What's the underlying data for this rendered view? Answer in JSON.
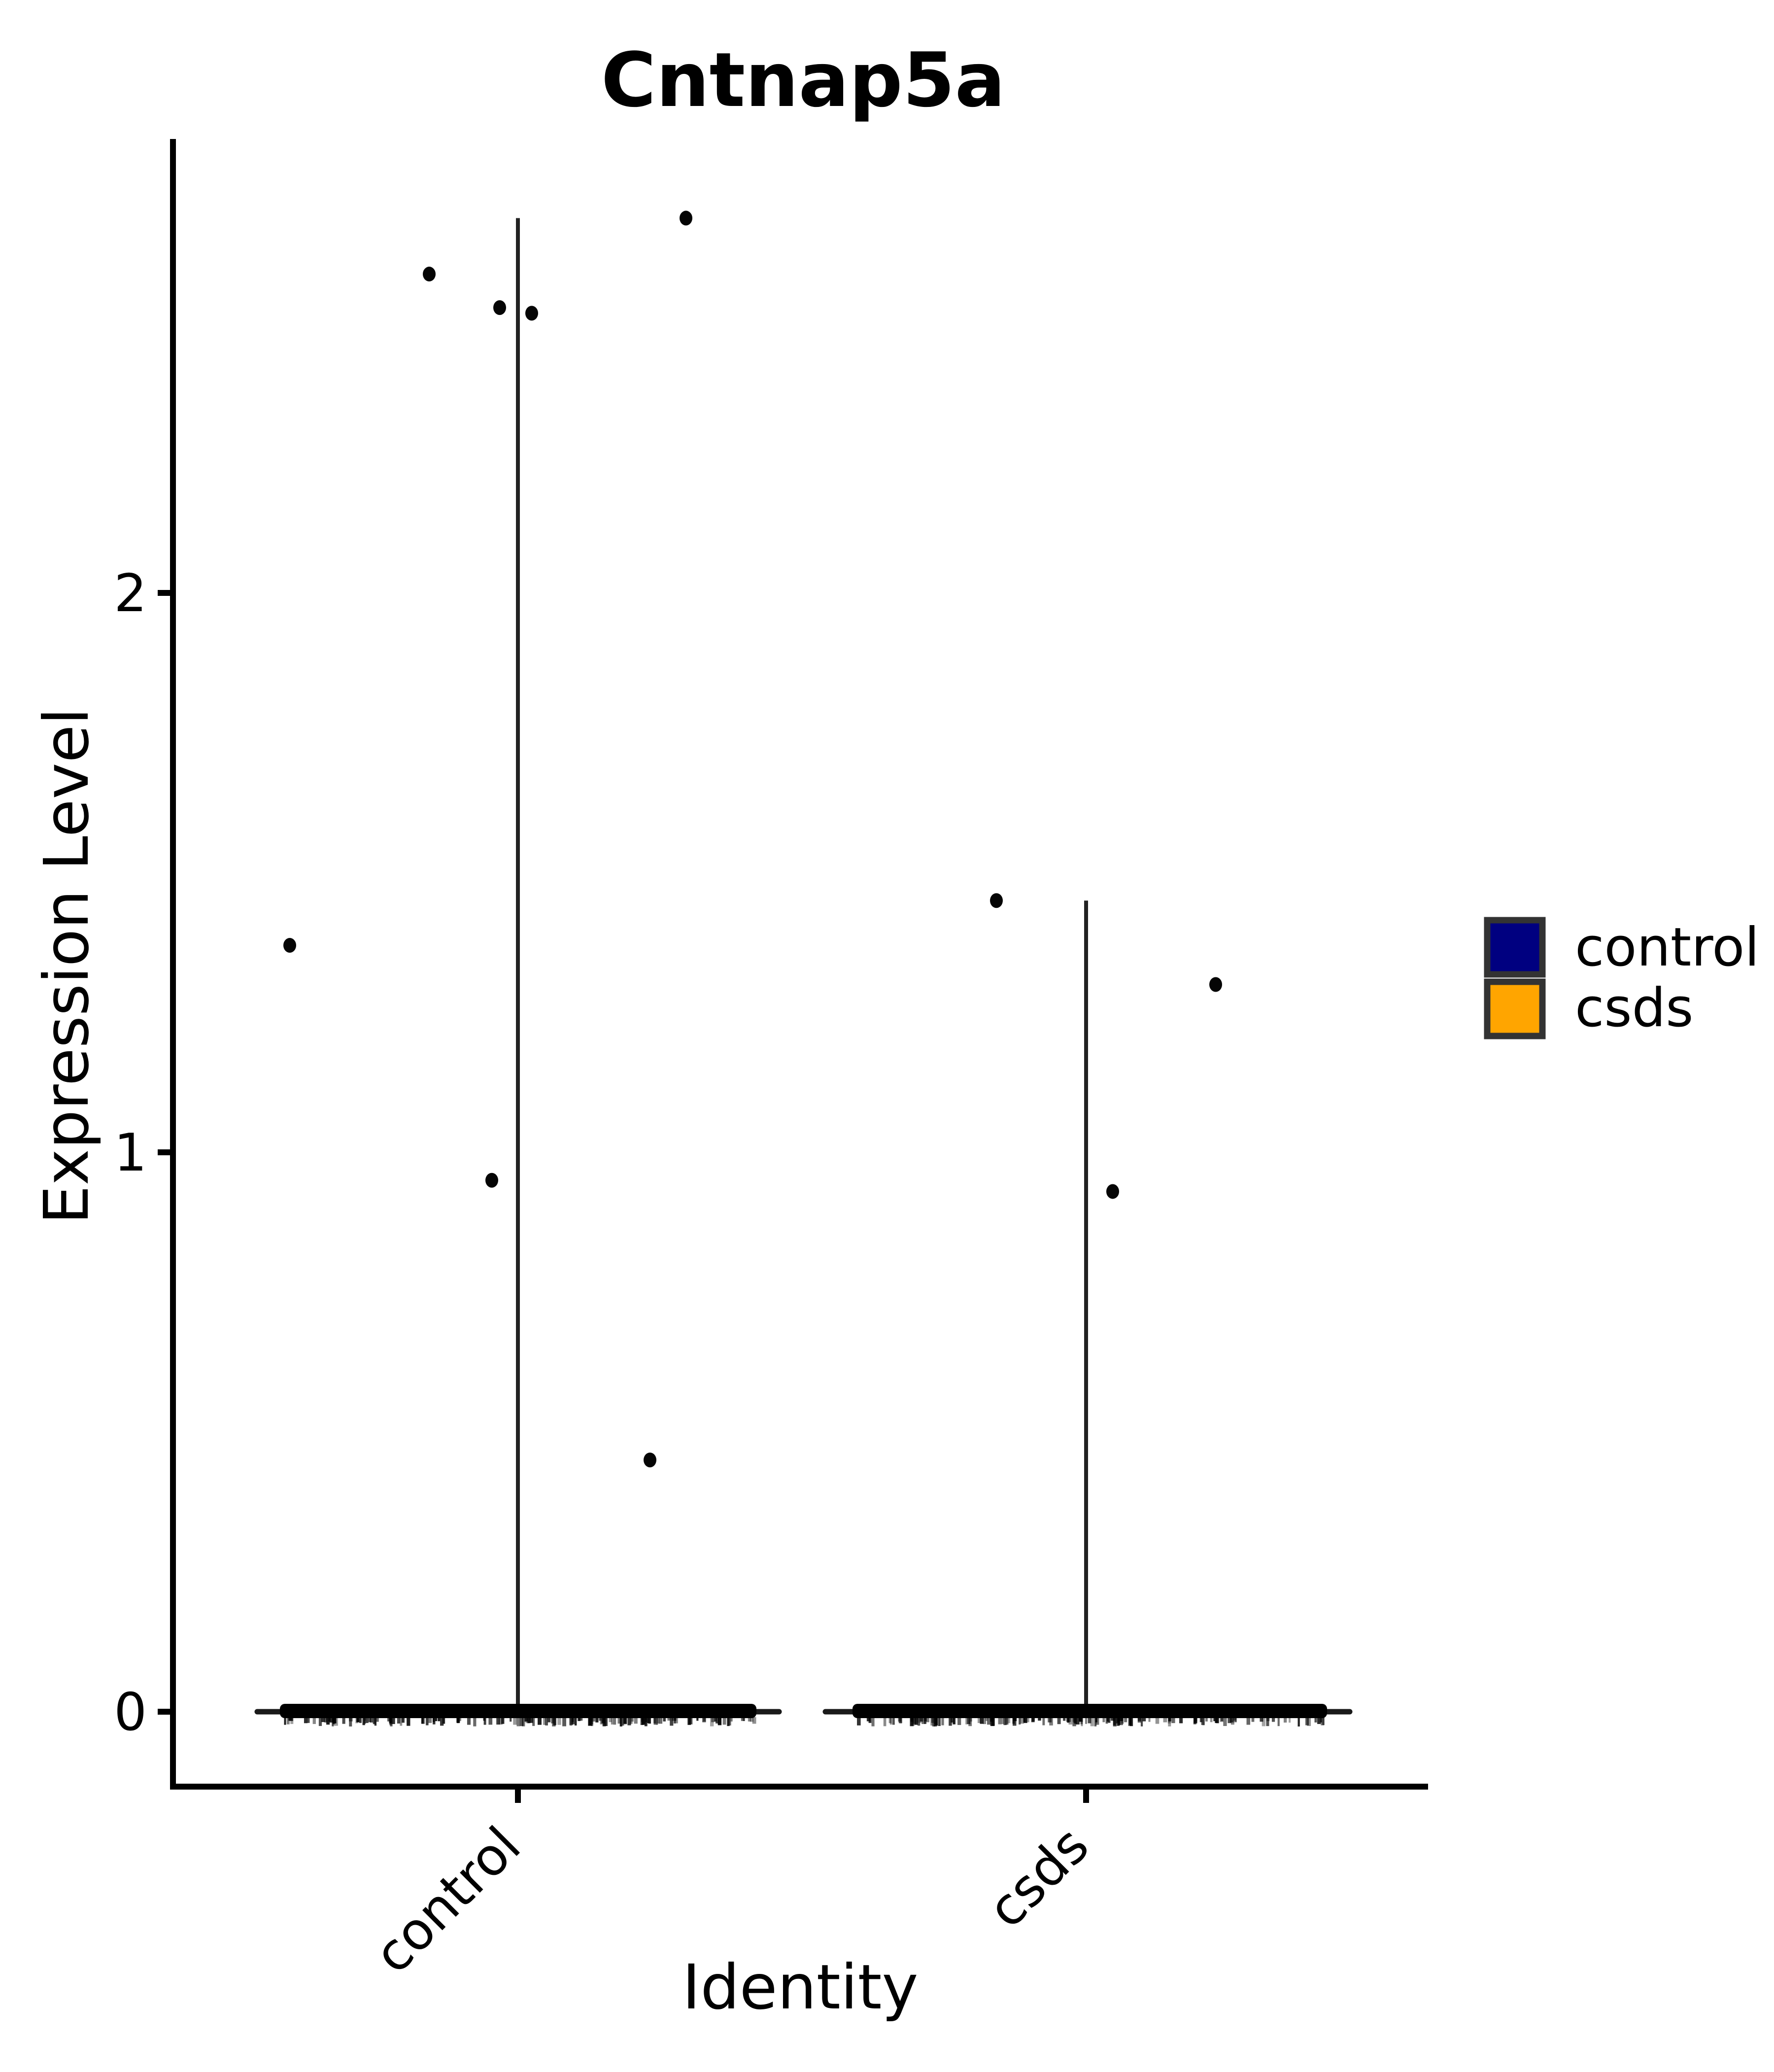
{
  "chart_data": {
    "type": "violin",
    "title": "Cntnap5a",
    "xlabel": "Identity",
    "ylabel": "Expression Level",
    "categories": [
      "control",
      "csds"
    ],
    "y_ticks": [
      0,
      1,
      2
    ],
    "ylim": [
      0,
      2.75
    ],
    "legend_position": "right",
    "legend": [
      {
        "label": "control",
        "color": "#000080"
      },
      {
        "label": "csds",
        "color": "#FFA500"
      }
    ],
    "groups": [
      {
        "name": "control",
        "violin_max": 2.67,
        "zero_note": "dense overlapping points at expression level 0",
        "points": [
          {
            "value": 2.67,
            "dx": 341
          },
          {
            "value": 2.57,
            "dx": -180
          },
          {
            "value": 2.51,
            "dx": -37
          },
          {
            "value": 2.5,
            "dx": 28
          },
          {
            "value": 1.37,
            "dx": -463
          },
          {
            "value": 0.95,
            "dx": -53
          },
          {
            "value": 0.45,
            "dx": 268
          }
        ],
        "zero_band": {
          "x1": 568,
          "x2": 1535,
          "line_x1": 522,
          "line_x2": 1581
        }
      },
      {
        "name": "csds",
        "violin_max": 1.45,
        "zero_note": "dense overlapping points at expression level 0",
        "points": [
          {
            "value": 1.45,
            "dx": -182
          },
          {
            "value": 1.3,
            "dx": 263
          },
          {
            "value": 0.93,
            "dx": 54
          }
        ],
        "zero_band": {
          "x1": 1730,
          "x2": 2693,
          "line_x1": 1675,
          "line_x2": 2739
        }
      }
    ]
  }
}
